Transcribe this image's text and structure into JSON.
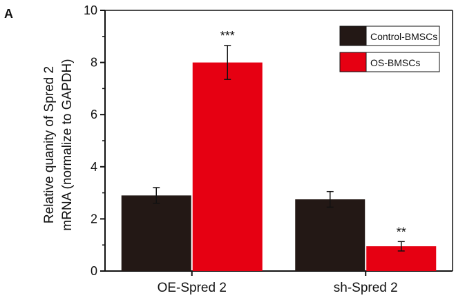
{
  "panel_label": "A",
  "chart_data": {
    "type": "bar",
    "categories": [
      "OE-Spred 2",
      "sh-Spred 2"
    ],
    "series": [
      {
        "name": "Control-BMSCs",
        "color": "#231815",
        "values": [
          2.9,
          2.75
        ],
        "errors": [
          0.3,
          0.3
        ]
      },
      {
        "name": "OS-BMSCs",
        "color": "#e60012",
        "values": [
          8.0,
          0.95
        ],
        "errors": [
          0.65,
          0.18
        ]
      }
    ],
    "annotations": [
      "***",
      "**"
    ],
    "ylabel_line1": "Relative quanity of  Spred 2",
    "ylabel_line2": "mRNA  (normalize to GAPDH)",
    "xlabel": "",
    "ylim": [
      0,
      10
    ],
    "yticks": [
      "0",
      "2",
      "4",
      "6",
      "8",
      "10"
    ],
    "legend_position": "top-right",
    "grid": false
  }
}
